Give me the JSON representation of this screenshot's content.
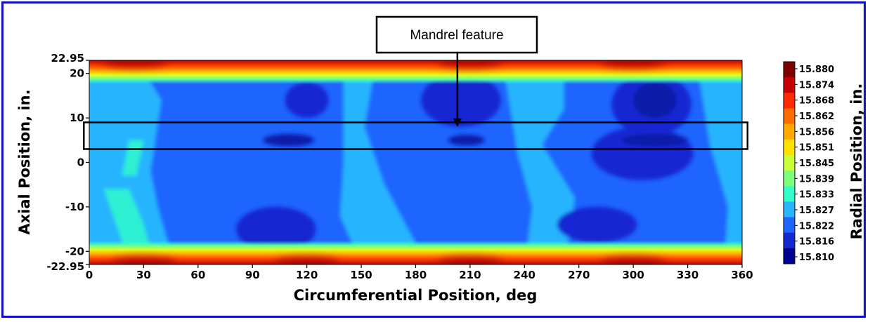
{
  "chart_data": {
    "type": "heatmap",
    "title": "",
    "xlabel": "Circumferential Position, deg",
    "ylabel": "Axial Position, in.",
    "colorbar_label": "Radial Position, in.",
    "xlim": [
      0,
      360
    ],
    "ylim": [
      -22.95,
      22.95
    ],
    "x_ticks": [
      "0",
      "30",
      "60",
      "90",
      "120",
      "150",
      "180",
      "210",
      "240",
      "270",
      "300",
      "330",
      "360"
    ],
    "y_ticks": [
      {
        "value": 22.95,
        "label": "22.95"
      },
      {
        "value": 20,
        "label": "20"
      },
      {
        "value": 10,
        "label": "10"
      },
      {
        "value": 0,
        "label": "0"
      },
      {
        "value": -10,
        "label": "-10"
      },
      {
        "value": -20,
        "label": "-20"
      },
      {
        "value": -22.95,
        "label": "-22.95"
      }
    ],
    "colorbar_levels": [
      "15.880",
      "15.874",
      "15.868",
      "15.862",
      "15.856",
      "15.851",
      "15.845",
      "15.839",
      "15.833",
      "15.827",
      "15.822",
      "15.816",
      "15.810"
    ],
    "colormap": [
      "#7f0000",
      "#c80000",
      "#ff2a00",
      "#ff6a00",
      "#ffa800",
      "#ffe000",
      "#c8ff38",
      "#7cff7a",
      "#30ffc8",
      "#28b4ff",
      "#1e64ff",
      "#1428d2",
      "#00008f"
    ],
    "colors": {
      "background": "#1e64ff",
      "light_band": "#28b4ff",
      "cyan_band": "#30ffc8",
      "deep": "#1428d2",
      "deepest": "#0a1aa8"
    },
    "highlight_box": {
      "y_range": [
        3,
        9
      ],
      "x_range": [
        -3,
        363
      ]
    },
    "annotation": {
      "text": "Mandrel feature",
      "x": 203,
      "y": 8
    }
  }
}
